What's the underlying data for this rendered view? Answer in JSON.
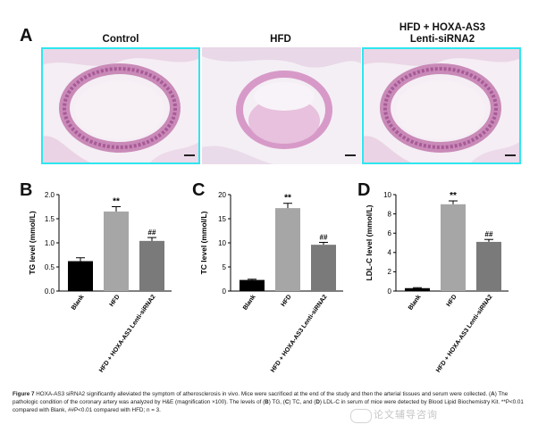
{
  "figure": {
    "panel_a": {
      "letter": "A",
      "titles": [
        "Control",
        "HFD",
        "HFD + HOXA-AS3\nLenti-siRNA2"
      ],
      "highlight_color": "#2ee6f0"
    },
    "caption": {
      "label": "Figure 7",
      "text_html_parts": {
        "p1": "HOXA-AS3 siRNA2 significantly alleviated the symptom of atherosclerosis in vivo. Mice were sacrificed at the end of the study and then the arterial tissues and serum were collected. (",
        "a": "A",
        "p2": ") The pathologic condition of the coronary artery was analyzed by H&E (magnification ×100). The levels of (",
        "b": "B",
        "p3": ") TG, (",
        "c": "C",
        "p4": ") TC, and (",
        "d": "D",
        "p5": ") LDL-C in serum of mice were detected by Blood Lipid Biochemistry Kit. **P<0.01 compared with Blank, ##P<0.01 compared with HFD; n = 3."
      }
    },
    "watermark": "论文辅导咨询"
  },
  "chart_data": [
    {
      "panel": "B",
      "type": "bar",
      "categories": [
        "Blank",
        "HFD",
        "HFD + HOXA-AS3 Lenti-siRNA2"
      ],
      "values": [
        0.62,
        1.65,
        1.04
      ],
      "errors": [
        0.07,
        0.1,
        0.07
      ],
      "annotations": [
        "",
        "**",
        "##"
      ],
      "ylabel": "TG level (mmol/L)",
      "ylim": [
        0,
        2.0
      ],
      "yticks": [
        "0.0",
        "0.5",
        "1.0",
        "1.5",
        "2.0"
      ],
      "ytick_values": [
        0,
        0.5,
        1.0,
        1.5,
        2.0
      ],
      "colors": [
        "#000000",
        "#a6a6a6",
        "#7a7a7a"
      ]
    },
    {
      "panel": "C",
      "type": "bar",
      "categories": [
        "Blank",
        "HFD",
        "HFD + HOXA-AS3 Lenti-siRNA2"
      ],
      "values": [
        2.3,
        17.2,
        9.6
      ],
      "errors": [
        0.15,
        1.0,
        0.5
      ],
      "annotations": [
        "",
        "**",
        "##"
      ],
      "ylabel": "TC level (mmol/L)",
      "ylim": [
        0,
        20
      ],
      "yticks": [
        "0",
        "5",
        "10",
        "15",
        "20"
      ],
      "ytick_values": [
        0,
        5,
        10,
        15,
        20
      ],
      "colors": [
        "#000000",
        "#a6a6a6",
        "#7a7a7a"
      ]
    },
    {
      "panel": "D",
      "type": "bar",
      "categories": [
        "Blank",
        "HFD",
        "HFD + HOXA-AS3 Lenti-siRNA2"
      ],
      "values": [
        0.3,
        9.0,
        5.1
      ],
      "errors": [
        0.05,
        0.35,
        0.25
      ],
      "annotations": [
        "",
        "**",
        "##"
      ],
      "ylabel": "LDL-C level (mmol/L)",
      "ylim": [
        0,
        10
      ],
      "yticks": [
        "0",
        "2",
        "4",
        "6",
        "8",
        "10"
      ],
      "ytick_values": [
        0,
        2,
        4,
        6,
        8,
        10
      ],
      "colors": [
        "#000000",
        "#a6a6a6",
        "#7a7a7a"
      ]
    }
  ]
}
